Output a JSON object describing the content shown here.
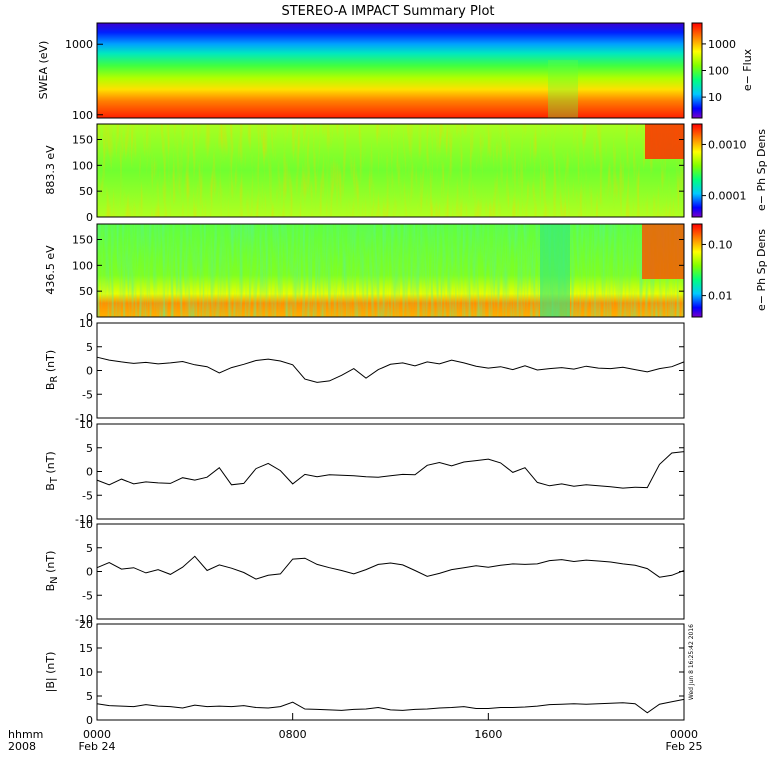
{
  "title": "STEREO-A IMPACT Summary Plot",
  "time_axis": {
    "row1_label": "hhmm",
    "row2_label": "2008",
    "ticks": [
      {
        "time": "0000",
        "date": "Feb 24",
        "hour": 0
      },
      {
        "time": "0800",
        "date": "",
        "hour": 8
      },
      {
        "time": "1600",
        "date": "",
        "hour": 16
      },
      {
        "time": "0000",
        "date": "Feb 25",
        "hour": 24
      }
    ],
    "range_hours": [
      0,
      24
    ]
  },
  "timestamp": "Wed Jun  8 16:25:42 2016",
  "colors": {
    "trace": "#000000",
    "spectrogram_scale": [
      "#7b00c8",
      "#0000ff",
      "#00c8ff",
      "#00ff7f",
      "#80ff00",
      "#ffff00",
      "#ff8000",
      "#ff0000"
    ]
  },
  "chart_data": [
    {
      "type": "heatmap",
      "name": "swea-energy-spectrogram",
      "ylabel": "SWEA (eV)",
      "yscale": "log",
      "ylim": [
        90,
        2000
      ],
      "yticks": [
        "1000",
        "100"
      ],
      "colorbar": {
        "label": "e− Flux",
        "scale": "log",
        "ticks": [
          "1000",
          "100",
          "10"
        ]
      },
      "description_values": {
        "low_energy_flux": "high (red)",
        "high_energy_flux": "low (blue)"
      }
    },
    {
      "type": "heatmap",
      "name": "pitch-angle-883",
      "ylabel": "883.3 eV",
      "ylim": [
        0,
        180
      ],
      "yticks": [
        "150",
        "100",
        "50",
        "0"
      ],
      "colorbar": {
        "label": "e− Ph Sp Dens",
        "scale": "log",
        "ticks": [
          "0.0010",
          "0.0001"
        ]
      }
    },
    {
      "type": "heatmap",
      "name": "pitch-angle-436",
      "ylabel": "436.5 eV",
      "ylim": [
        0,
        180
      ],
      "yticks": [
        "150",
        "100",
        "50",
        "0"
      ],
      "colorbar": {
        "label": "e− Ph Sp Dens",
        "scale": "log",
        "ticks": [
          "0.10",
          "0.01"
        ]
      }
    },
    {
      "type": "line",
      "name": "br",
      "ylabel_main": "B",
      "ylabel_sub": "R",
      "ylabel_unit": " (nT)",
      "ylim": [
        -10,
        10
      ],
      "yticks": [
        "10",
        "5",
        "0",
        "-5",
        "-10"
      ],
      "x": [
        0,
        0.5,
        1,
        1.5,
        2,
        2.5,
        3,
        3.5,
        4,
        4.5,
        5,
        5.5,
        6,
        6.5,
        7,
        7.5,
        8,
        8.5,
        9,
        9.5,
        10,
        10.5,
        11,
        11.5,
        12,
        12.5,
        13,
        13.5,
        14,
        14.5,
        15,
        15.5,
        16,
        16.5,
        17,
        17.5,
        18,
        18.5,
        19,
        19.5,
        20,
        20.5,
        21,
        21.5,
        22,
        22.5,
        23,
        23.5,
        24
      ],
      "y": [
        2.8,
        2.2,
        1.8,
        1.5,
        1.7,
        1.4,
        1.6,
        1.9,
        1.2,
        0.8,
        -0.5,
        0.6,
        1.3,
        2.1,
        2.4,
        2.0,
        1.2,
        -1.8,
        -2.5,
        -2.2,
        -1.0,
        0.4,
        -1.6,
        0.2,
        1.3,
        1.6,
        1.0,
        1.8,
        1.4,
        2.2,
        1.6,
        0.9,
        0.5,
        0.8,
        0.2,
        1.0,
        0.1,
        0.4,
        0.6,
        0.3,
        0.9,
        0.5,
        0.4,
        0.7,
        0.2,
        -0.3,
        0.4,
        0.8,
        1.8
      ]
    },
    {
      "type": "line",
      "name": "bt",
      "ylabel_main": "B",
      "ylabel_sub": "T",
      "ylabel_unit": " (nT)",
      "ylim": [
        -10,
        10
      ],
      "yticks": [
        "10",
        "5",
        "0",
        "-5",
        "-10"
      ],
      "x": [
        0,
        0.5,
        1,
        1.5,
        2,
        2.5,
        3,
        3.5,
        4,
        4.5,
        5,
        5.5,
        6,
        6.5,
        7,
        7.5,
        8,
        8.5,
        9,
        9.5,
        10,
        10.5,
        11,
        11.5,
        12,
        12.5,
        13,
        13.5,
        14,
        14.5,
        15,
        15.5,
        16,
        16.5,
        17,
        17.5,
        18,
        18.5,
        19,
        19.5,
        20,
        20.5,
        21,
        21.5,
        22,
        22.5,
        23,
        23.5,
        24
      ],
      "y": [
        -1.8,
        -2.8,
        -1.6,
        -2.6,
        -2.2,
        -2.4,
        -2.5,
        -1.3,
        -1.8,
        -1.2,
        0.8,
        -2.8,
        -2.5,
        0.6,
        1.7,
        0.2,
        -2.6,
        -0.6,
        -1.1,
        -0.7,
        -0.8,
        -0.9,
        -1.1,
        -1.2,
        -0.9,
        -0.6,
        -0.7,
        1.3,
        1.9,
        1.2,
        2.0,
        2.3,
        2.6,
        1.8,
        -0.2,
        0.8,
        -2.3,
        -3.0,
        -2.6,
        -3.1,
        -2.8,
        -3.0,
        -3.2,
        -3.5,
        -3.3,
        -3.4,
        1.5,
        3.9,
        4.2
      ]
    },
    {
      "type": "line",
      "name": "bn",
      "ylabel_main": "B",
      "ylabel_sub": "N",
      "ylabel_unit": " (nT)",
      "ylim": [
        -10,
        10
      ],
      "yticks": [
        "10",
        "5",
        "0",
        "-5",
        "-10"
      ],
      "x": [
        0,
        0.5,
        1,
        1.5,
        2,
        2.5,
        3,
        3.5,
        4,
        4.5,
        5,
        5.5,
        6,
        6.5,
        7,
        7.5,
        8,
        8.5,
        9,
        9.5,
        10,
        10.5,
        11,
        11.5,
        12,
        12.5,
        13,
        13.5,
        14,
        14.5,
        15,
        15.5,
        16,
        16.5,
        17,
        17.5,
        18,
        18.5,
        19,
        19.5,
        20,
        20.5,
        21,
        21.5,
        22,
        22.5,
        23,
        23.5,
        24
      ],
      "y": [
        0.8,
        1.9,
        0.5,
        0.8,
        -0.3,
        0.4,
        -0.6,
        0.9,
        3.2,
        0.2,
        1.4,
        0.7,
        -0.2,
        -1.6,
        -0.8,
        -0.5,
        2.6,
        2.8,
        1.5,
        0.8,
        0.2,
        -0.5,
        0.4,
        1.5,
        1.8,
        1.4,
        0.2,
        -1.0,
        -0.4,
        0.4,
        0.8,
        1.2,
        0.9,
        1.3,
        1.6,
        1.5,
        1.6,
        2.3,
        2.5,
        2.1,
        2.4,
        2.2,
        2.0,
        1.6,
        1.3,
        0.6,
        -1.2,
        -0.8,
        0.2
      ]
    },
    {
      "type": "line",
      "name": "babs",
      "ylabel_main": "|B| (nT)",
      "ylim": [
        0,
        20
      ],
      "yticks": [
        "20",
        "15",
        "10",
        "5",
        "0"
      ],
      "x": [
        0,
        0.5,
        1,
        1.5,
        2,
        2.5,
        3,
        3.5,
        4,
        4.5,
        5,
        5.5,
        6,
        6.5,
        7,
        7.5,
        8,
        8.5,
        9,
        9.5,
        10,
        10.5,
        11,
        11.5,
        12,
        12.5,
        13,
        13.5,
        14,
        14.5,
        15,
        15.5,
        16,
        16.5,
        17,
        17.5,
        18,
        18.5,
        19,
        19.5,
        20,
        20.5,
        21,
        21.5,
        22,
        22.5,
        23,
        23.5,
        24
      ],
      "y": [
        3.4,
        3.0,
        2.9,
        2.8,
        3.2,
        2.9,
        2.8,
        2.5,
        3.1,
        2.8,
        2.9,
        2.8,
        3.0,
        2.6,
        2.5,
        2.8,
        3.7,
        2.3,
        2.2,
        2.1,
        2.0,
        2.2,
        2.3,
        2.6,
        2.1,
        2.0,
        2.2,
        2.3,
        2.5,
        2.6,
        2.8,
        2.4,
        2.4,
        2.6,
        2.6,
        2.7,
        2.9,
        3.2,
        3.3,
        3.4,
        3.3,
        3.4,
        3.5,
        3.6,
        3.4,
        1.5,
        3.3,
        3.8,
        4.3
      ]
    }
  ]
}
